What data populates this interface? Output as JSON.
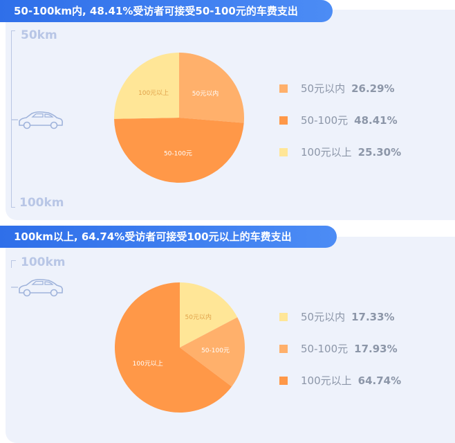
{
  "panel1": {
    "banner": "50-100km内, 48.41%受访者可接受50-100元的车费支出",
    "km_top": "50km",
    "km_bottom": "100km",
    "legend": [
      {
        "label": "50元以内",
        "value": "26.29%"
      },
      {
        "label": "50-100元",
        "value": "48.41%"
      },
      {
        "label": "100元以上",
        "value": "25.30%"
      }
    ]
  },
  "panel2": {
    "banner": "100km以上, 64.74%受访者可接受100元以上的车费支出",
    "km_top": "100km",
    "legend": [
      {
        "label": "50元以内",
        "value": "17.33%"
      },
      {
        "label": "50-100元",
        "value": "17.93%"
      },
      {
        "label": "100元以上",
        "value": "64.74%"
      }
    ]
  },
  "icons": {
    "car": "car-icon"
  },
  "chart_data": [
    {
      "type": "pie",
      "title": "50-100km内, 48.41%受访者可接受50-100元的车费支出",
      "categories": [
        "50元以内",
        "50-100元",
        "100元以上"
      ],
      "values": [
        26.29,
        48.41,
        25.3
      ],
      "colors": [
        "#ffb06b",
        "#ff9848",
        "#ffe697"
      ],
      "legend": "right"
    },
    {
      "type": "pie",
      "title": "100km以上, 64.74%受访者可接受100元以上的车费支出",
      "categories": [
        "50元以内",
        "50-100元",
        "100元以上"
      ],
      "values": [
        17.33,
        17.93,
        64.74
      ],
      "colors": [
        "#ffe697",
        "#ffb06b",
        "#ff9848"
      ],
      "legend": "right"
    }
  ]
}
